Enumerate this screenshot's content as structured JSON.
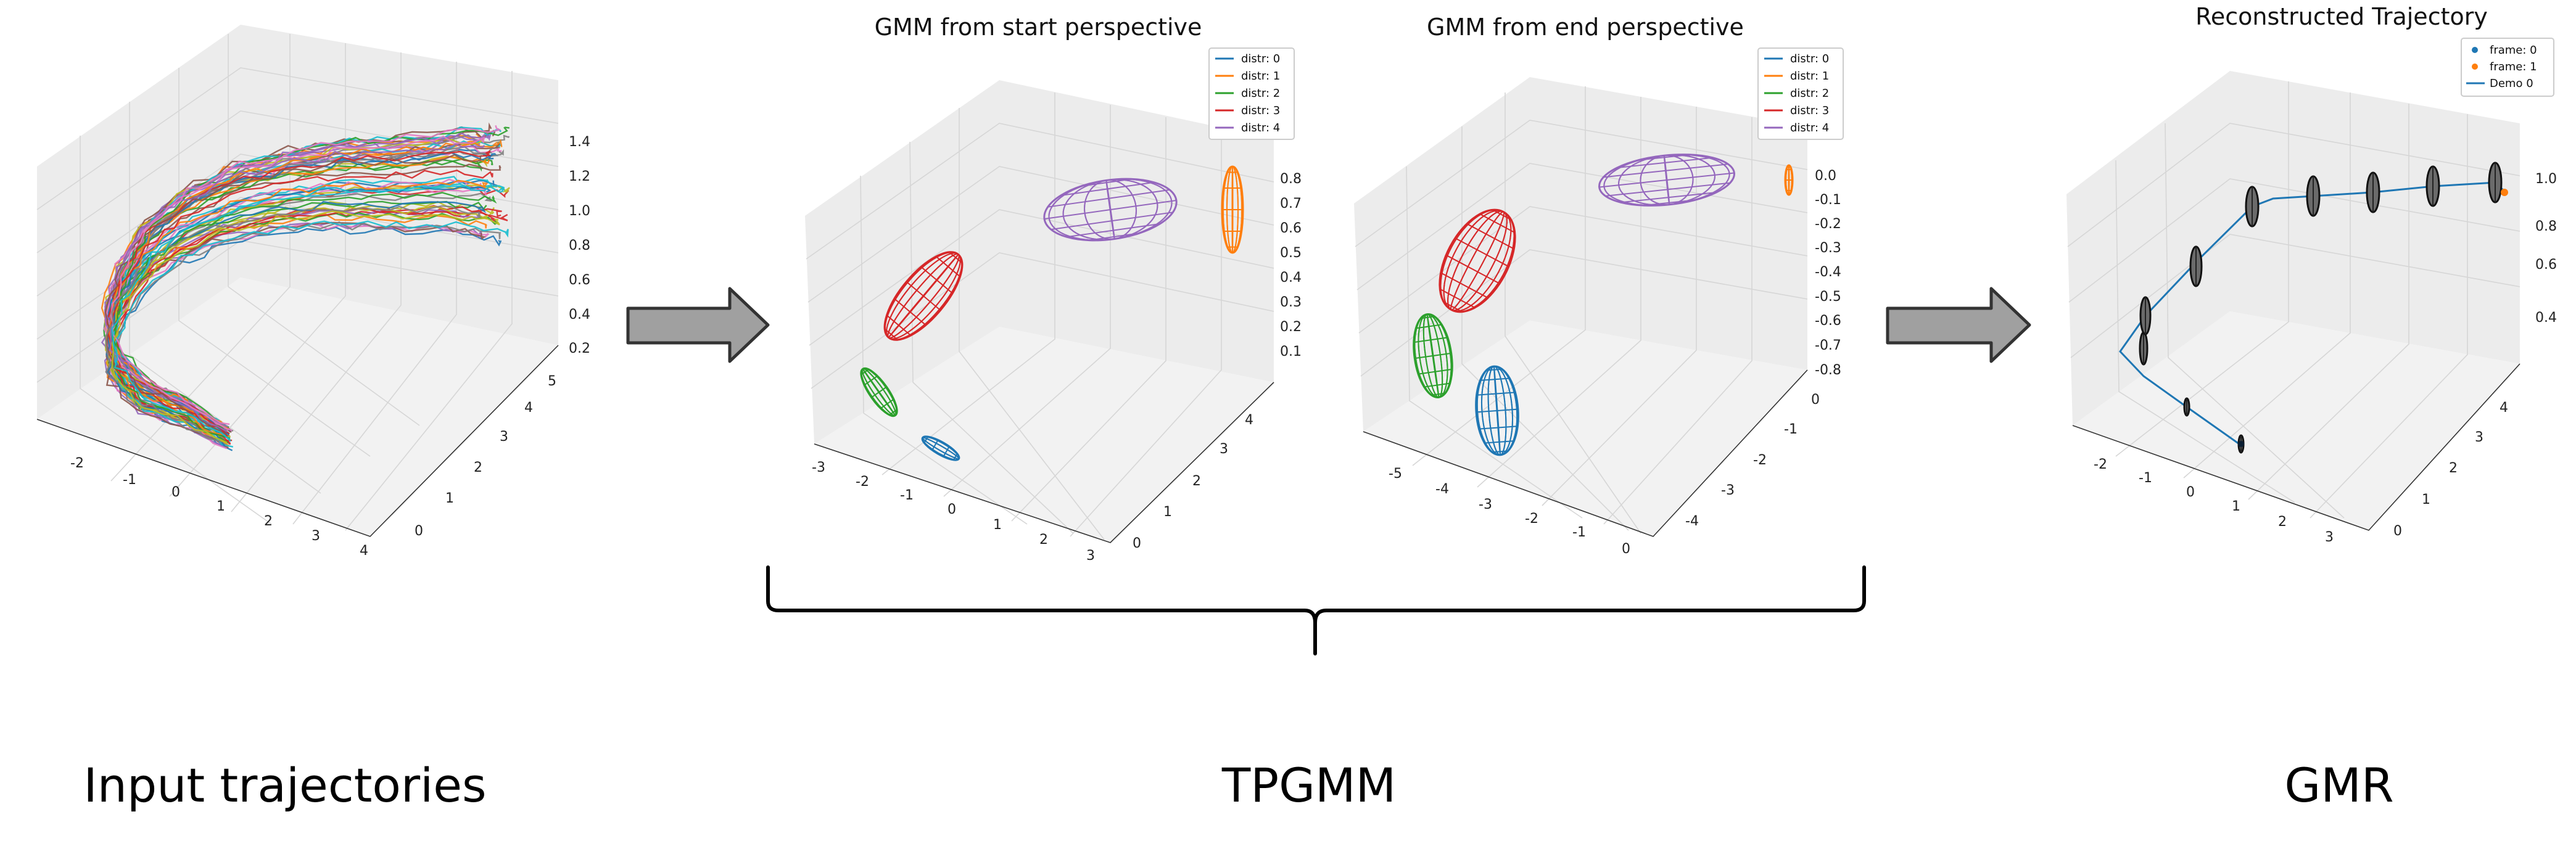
{
  "panels": {
    "input": {
      "title": "",
      "xticks": [
        "-2",
        "-1",
        "0",
        "1",
        "2",
        "3",
        "4"
      ],
      "yticks": [
        "0",
        "1",
        "2",
        "3",
        "4",
        "5"
      ],
      "zticks": [
        "0.2",
        "0.4",
        "0.6",
        "0.8",
        "1.0",
        "1.2",
        "1.4"
      ]
    },
    "start": {
      "title": "GMM from start perspective",
      "xticks": [
        "-3",
        "-2",
        "-1",
        "0",
        "1",
        "2",
        "3"
      ],
      "yticks": [
        "0",
        "1",
        "2",
        "3",
        "4"
      ],
      "zticks": [
        "0.1",
        "0.2",
        "0.3",
        "0.4",
        "0.5",
        "0.6",
        "0.7",
        "0.8"
      ],
      "legend": [
        "distr: 0",
        "distr: 1",
        "distr: 2",
        "distr: 3",
        "distr: 4"
      ]
    },
    "end": {
      "title": "GMM from end perspective",
      "xticks": [
        "-5",
        "-4",
        "-3",
        "-2",
        "-1",
        "0"
      ],
      "yticks": [
        "-4",
        "-3",
        "-2",
        "-1",
        "0"
      ],
      "zticks": [
        "-0.8",
        "-0.7",
        "-0.6",
        "-0.5",
        "-0.4",
        "-0.3",
        "-0.2",
        "-0.1",
        "0.0"
      ],
      "legend": [
        "distr: 0",
        "distr: 1",
        "distr: 2",
        "distr: 3",
        "distr: 4"
      ]
    },
    "gmr": {
      "title": "Reconstructed Trajectory",
      "xticks": [
        "-2",
        "-1",
        "0",
        "1",
        "2",
        "3"
      ],
      "yticks": [
        "0",
        "1",
        "2",
        "3",
        "4"
      ],
      "zticks": [
        "0.4",
        "0.6",
        "0.8",
        "1.0"
      ],
      "legend": [
        "frame: 0",
        "frame: 1",
        "Demo 0"
      ]
    }
  },
  "captions": {
    "input": "Input trajectories",
    "tpgmm": "TPGMM",
    "gmr": "GMR"
  },
  "colors": {
    "distr0": "#1f77b4",
    "distr1": "#ff7f0e",
    "distr2": "#2ca02c",
    "distr3": "#d62728",
    "distr4": "#9467bd",
    "arrow_fill": "#a0a0a0",
    "arrow_stroke": "#333333"
  }
}
